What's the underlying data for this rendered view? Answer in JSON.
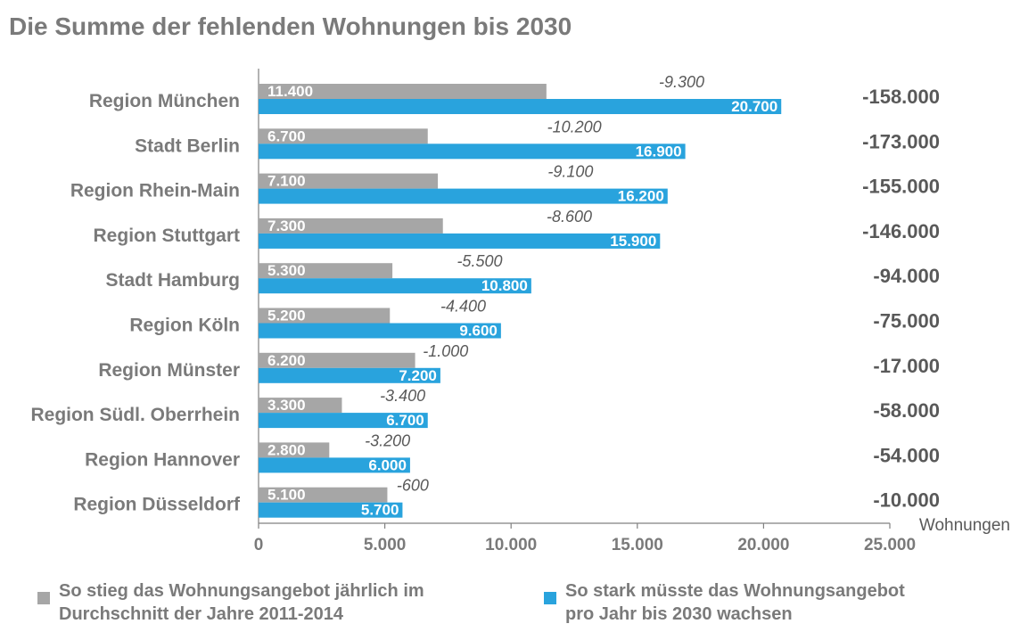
{
  "title": "Die Summe der fehlenden Wohnungen bis 2030",
  "chart_data": {
    "type": "bar",
    "orientation": "horizontal",
    "categories": [
      "Region München",
      "Stadt Berlin",
      "Region Rhein-Main",
      "Region Stuttgart",
      "Stadt Hamburg",
      "Region Köln",
      "Region Münster",
      "Region Südl. Oberrhein",
      "Region Hannover",
      "Region Düsseldorf"
    ],
    "series": [
      {
        "name": "So stieg das Wohnungsangebot jährlich im Durchschnitt der Jahre 2011-2014",
        "color": "#a6a6a6",
        "values": [
          11400,
          6700,
          7100,
          7300,
          5300,
          5200,
          6200,
          3300,
          2800,
          5100
        ],
        "labels": [
          "11.400",
          "6.700",
          "7.100",
          "7.300",
          "5.300",
          "5.200",
          "6.200",
          "3.300",
          "2.800",
          "5.100"
        ]
      },
      {
        "name": "So stark müsste das Wohnungsangebot pro Jahr bis 2030 wachsen",
        "color": "#29a3dd",
        "values": [
          20700,
          16900,
          16200,
          15900,
          10800,
          9600,
          7200,
          6700,
          6000,
          5700
        ],
        "labels": [
          "20.700",
          "16.900",
          "16.200",
          "15.900",
          "10.800",
          "9.600",
          "7.200",
          "6.700",
          "6.000",
          "5.700"
        ]
      }
    ],
    "differences": [
      "-9.300",
      "-10.200",
      "-9.100",
      "-8.600",
      "-5.500",
      "-4.400",
      "-1.000",
      "-3.400",
      "-3.200",
      "-600"
    ],
    "totals": [
      "-158.000",
      "-173.000",
      "-155.000",
      "-146.000",
      "-94.000",
      "-75.000",
      "-17.000",
      "-58.000",
      "-54.000",
      "-10.000"
    ],
    "xticks": [
      0,
      5000,
      10000,
      15000,
      20000,
      25000
    ],
    "xtick_labels": [
      "0",
      "5.000",
      "10.000",
      "15.000",
      "20.000",
      "25.000"
    ],
    "xlabel": "Wohnungen",
    "xlim": [
      0,
      25000
    ],
    "legend_placement": "bottom",
    "grid": false
  },
  "legend": {
    "item1": {
      "line1": "So stieg das Wohnungsangebot jährlich im",
      "line2": "Durchschnitt der Jahre 2011-2014",
      "color": "#a6a6a6"
    },
    "item2": {
      "line1": "So stark müsste das Wohnungsangebot",
      "line2": "pro Jahr bis 2030 wachsen",
      "color": "#29a3dd"
    }
  }
}
